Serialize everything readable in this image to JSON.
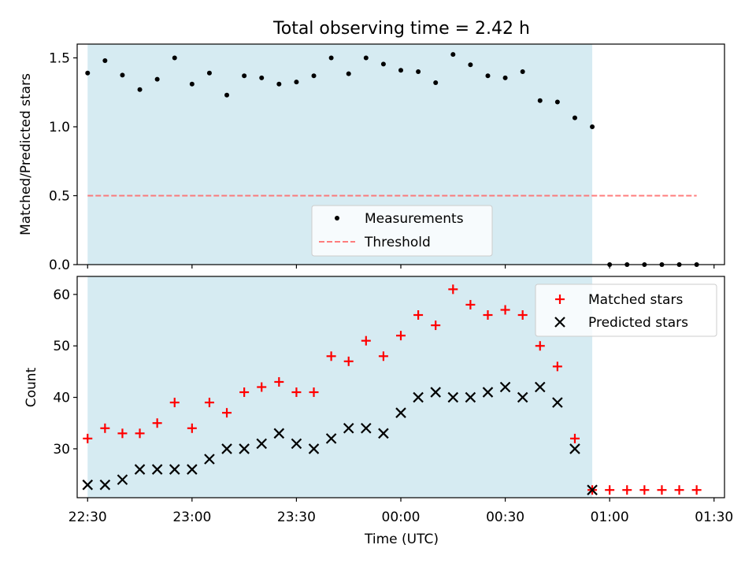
{
  "chart_data": [
    {
      "type": "scatter",
      "title": "Total observing time = 2.42 h",
      "ylabel": "Matched/Predicted stars",
      "xlabel": "",
      "xlim": [
        "22:27",
        "01:33"
      ],
      "ylim": [
        0,
        1.6
      ],
      "yticks": [
        0.0,
        0.5,
        1.0,
        1.5
      ],
      "ytick_labels": [
        "0.0",
        "0.5",
        "1.0",
        "1.5"
      ],
      "grid": false,
      "legend_position": "lower-center",
      "shaded_span": {
        "from": "22:30",
        "to": "00:55",
        "color": "#add8e6"
      },
      "series": [
        {
          "name": "Measurements",
          "marker": "dot",
          "color": "#000000",
          "x": [
            "22:30",
            "22:35",
            "22:40",
            "22:45",
            "22:50",
            "22:55",
            "23:00",
            "23:05",
            "23:10",
            "23:15",
            "23:20",
            "23:25",
            "23:30",
            "23:35",
            "23:40",
            "23:45",
            "23:50",
            "23:55",
            "00:00",
            "00:05",
            "00:10",
            "00:15",
            "00:20",
            "00:25",
            "00:30",
            "00:35",
            "00:40",
            "00:45",
            "00:50",
            "00:55",
            "01:00",
            "01:05",
            "01:10",
            "01:15",
            "01:20",
            "01:25"
          ],
          "y": [
            1.39,
            1.48,
            1.375,
            1.27,
            1.345,
            1.5,
            1.31,
            1.39,
            1.23,
            1.37,
            1.355,
            1.31,
            1.325,
            1.37,
            1.5,
            1.385,
            1.5,
            1.455,
            1.41,
            1.4,
            1.32,
            1.525,
            1.45,
            1.37,
            1.355,
            1.4,
            1.19,
            1.18,
            1.065,
            1.0,
            0,
            0,
            0,
            0,
            0,
            0
          ]
        },
        {
          "name": "Threshold",
          "style": "dashed-line",
          "color": "#ff6666",
          "x": [
            "22:30",
            "01:25"
          ],
          "y": [
            0.5,
            0.5
          ]
        }
      ]
    },
    {
      "type": "scatter",
      "title": "",
      "xlabel": "Time (UTC)",
      "ylabel": "Count",
      "xlim": [
        "22:27",
        "01:33"
      ],
      "ylim": [
        20.5,
        63.5
      ],
      "yticks": [
        30,
        40,
        50,
        60
      ],
      "ytick_labels": [
        "30",
        "40",
        "50",
        "60"
      ],
      "xticks": [
        "22:30",
        "23:00",
        "23:30",
        "00:00",
        "00:30",
        "01:00",
        "01:30"
      ],
      "grid": false,
      "legend_position": "upper-right",
      "shaded_span": {
        "from": "22:30",
        "to": "00:55",
        "color": "#add8e6"
      },
      "series": [
        {
          "name": "Matched stars",
          "marker": "plus",
          "color": "#ff0000",
          "x": [
            "22:30",
            "22:35",
            "22:40",
            "22:45",
            "22:50",
            "22:55",
            "23:00",
            "23:05",
            "23:10",
            "23:15",
            "23:20",
            "23:25",
            "23:30",
            "23:35",
            "23:40",
            "23:45",
            "23:50",
            "23:55",
            "00:00",
            "00:05",
            "00:10",
            "00:15",
            "00:20",
            "00:25",
            "00:30",
            "00:35",
            "00:40",
            "00:45",
            "00:50",
            "00:55",
            "01:00",
            "01:05",
            "01:10",
            "01:15",
            "01:20",
            "01:25"
          ],
          "y": [
            32,
            34,
            33,
            33,
            35,
            39,
            34,
            39,
            37,
            41,
            42,
            43,
            41,
            41,
            48,
            47,
            51,
            48,
            52,
            56,
            54,
            61,
            58,
            56,
            57,
            56,
            50,
            46,
            32,
            22,
            22,
            22,
            22,
            22,
            22,
            22
          ]
        },
        {
          "name": "Predicted stars",
          "marker": "x",
          "color": "#000000",
          "x": [
            "22:30",
            "22:35",
            "22:40",
            "22:45",
            "22:50",
            "22:55",
            "23:00",
            "23:05",
            "23:10",
            "23:15",
            "23:20",
            "23:25",
            "23:30",
            "23:35",
            "23:40",
            "23:45",
            "23:50",
            "23:55",
            "00:00",
            "00:05",
            "00:10",
            "00:15",
            "00:20",
            "00:25",
            "00:30",
            "00:35",
            "00:40",
            "00:45",
            "00:50",
            "00:55"
          ],
          "y": [
            23,
            23,
            24,
            26,
            26,
            26,
            26,
            28,
            30,
            30,
            31,
            33,
            31,
            30,
            32,
            34,
            34,
            33,
            37,
            40,
            41,
            40,
            40,
            41,
            42,
            40,
            42,
            39,
            30,
            22
          ]
        }
      ]
    }
  ]
}
